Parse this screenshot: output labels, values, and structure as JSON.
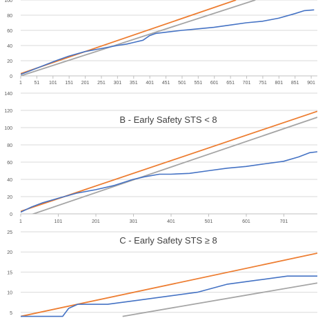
{
  "chart_data": [
    {
      "type": "line",
      "title": "",
      "xlim": [
        1,
        920
      ],
      "ylim": [
        0,
        100
      ],
      "x_ticks": [
        "1",
        "51",
        "101",
        "151",
        "201",
        "251",
        "301",
        "351",
        "401",
        "451",
        "501",
        "551",
        "601",
        "651",
        "701",
        "751",
        "801",
        "851",
        "901"
      ],
      "y_ticks": [
        "0",
        "20",
        "40",
        "60",
        "80",
        "100"
      ],
      "series": [
        {
          "color": "#4472c4",
          "x": [
            1,
            20,
            50,
            80,
            110,
            150,
            200,
            250,
            300,
            330,
            350,
            380,
            400,
            420,
            460,
            500,
            550,
            600,
            650,
            700,
            750,
            800,
            850,
            880,
            910
          ],
          "y": [
            2,
            5,
            10,
            15,
            20,
            26,
            32,
            36,
            40,
            42,
            44,
            47,
            53,
            56,
            58,
            60,
            62,
            64,
            67,
            70,
            72,
            76,
            82,
            86,
            87
          ]
        },
        {
          "color": "#ed7d31",
          "x": [
            1,
            668
          ],
          "y": [
            3,
            100
          ]
        },
        {
          "color": "#a5a5a5",
          "x": [
            1,
            728
          ],
          "y": [
            0,
            100
          ]
        }
      ]
    },
    {
      "type": "line",
      "title": "B - Early Safety STS < 8",
      "xlim": [
        1,
        790
      ],
      "ylim": [
        0,
        140
      ],
      "x_ticks": [
        "1",
        "101",
        "201",
        "301",
        "401",
        "501",
        "601",
        "701"
      ],
      "y_ticks": [
        "0",
        "20",
        "40",
        "60",
        "80",
        "100",
        "120",
        "140"
      ],
      "series": [
        {
          "color": "#4472c4",
          "x": [
            1,
            30,
            60,
            100,
            150,
            200,
            250,
            300,
            330,
            370,
            400,
            450,
            500,
            550,
            600,
            650,
            700,
            740,
            770,
            790
          ],
          "y": [
            2,
            8,
            13,
            18,
            24,
            28,
            33,
            40,
            43,
            46,
            46,
            47,
            50,
            53,
            55,
            58,
            61,
            66,
            71,
            72
          ]
        },
        {
          "color": "#ed7d31",
          "x": [
            1,
            790
          ],
          "y": [
            3,
            119
          ]
        },
        {
          "color": "#a5a5a5",
          "x": [
            1,
            790
          ],
          "y": [
            -5,
            112
          ]
        }
      ]
    },
    {
      "type": "line",
      "title": "C - Early Safety STS ≥ 8",
      "xlim": [
        1,
        100
      ],
      "ylim": [
        0,
        25
      ],
      "x_ticks": [],
      "y_ticks": [
        "5",
        "10",
        "15",
        "20",
        "25"
      ],
      "series": [
        {
          "color": "#4472c4",
          "x": [
            1,
            15,
            17,
            20,
            30,
            40,
            50,
            60,
            70,
            80,
            90,
            100
          ],
          "y": [
            4,
            4,
            6,
            7,
            7,
            8,
            9,
            10,
            12,
            13,
            14,
            14
          ]
        },
        {
          "color": "#ed7d31",
          "x": [
            1,
            100
          ],
          "y": [
            4,
            19.7
          ]
        },
        {
          "color": "#a5a5a5",
          "x": [
            35,
            100
          ],
          "y": [
            4,
            12.3
          ]
        }
      ]
    }
  ]
}
